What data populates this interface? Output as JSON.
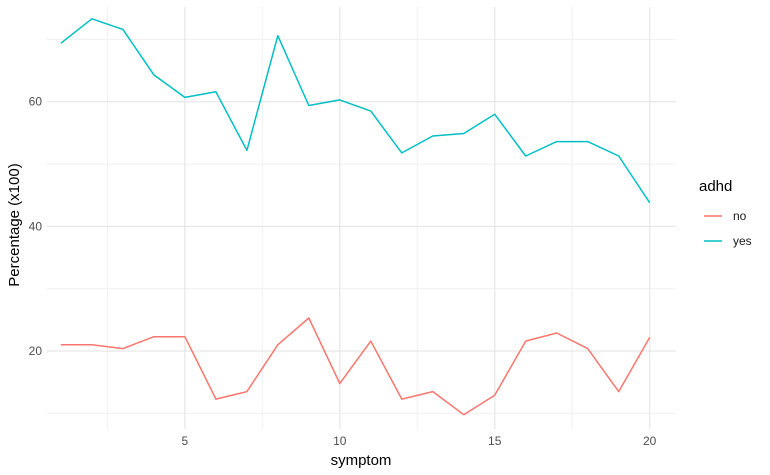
{
  "chart_data": {
    "type": "line",
    "title": "",
    "xlabel": "symptom",
    "ylabel": "Percentage (x100)",
    "xlim": [
      0.55,
      20.85
    ],
    "ylim": [
      7.5,
      75.2
    ],
    "x_ticks": [
      5,
      10,
      15,
      20
    ],
    "y_ticks": [
      20,
      40,
      60
    ],
    "grid": true,
    "legend": {
      "title": "adhd",
      "placement": "right"
    },
    "x": [
      1,
      2,
      3,
      4,
      5,
      6,
      7,
      8,
      9,
      10,
      11,
      12,
      13,
      14,
      15,
      16,
      17,
      18,
      19,
      20
    ],
    "series": [
      {
        "name": "no",
        "color": "#F8766D",
        "values": [
          21.0,
          21.0,
          20.4,
          22.3,
          22.3,
          12.3,
          13.5,
          21.0,
          25.3,
          14.8,
          21.6,
          12.3,
          13.5,
          9.8,
          12.9,
          21.6,
          22.9,
          20.4,
          13.5,
          22.2
        ]
      },
      {
        "name": "yes",
        "color": "#00BFC4",
        "values": [
          69.4,
          73.3,
          71.6,
          64.3,
          60.7,
          61.6,
          52.2,
          70.6,
          59.4,
          60.3,
          58.5,
          51.8,
          54.5,
          54.9,
          58.0,
          51.3,
          53.6,
          53.6,
          51.3,
          43.8
        ]
      }
    ]
  }
}
